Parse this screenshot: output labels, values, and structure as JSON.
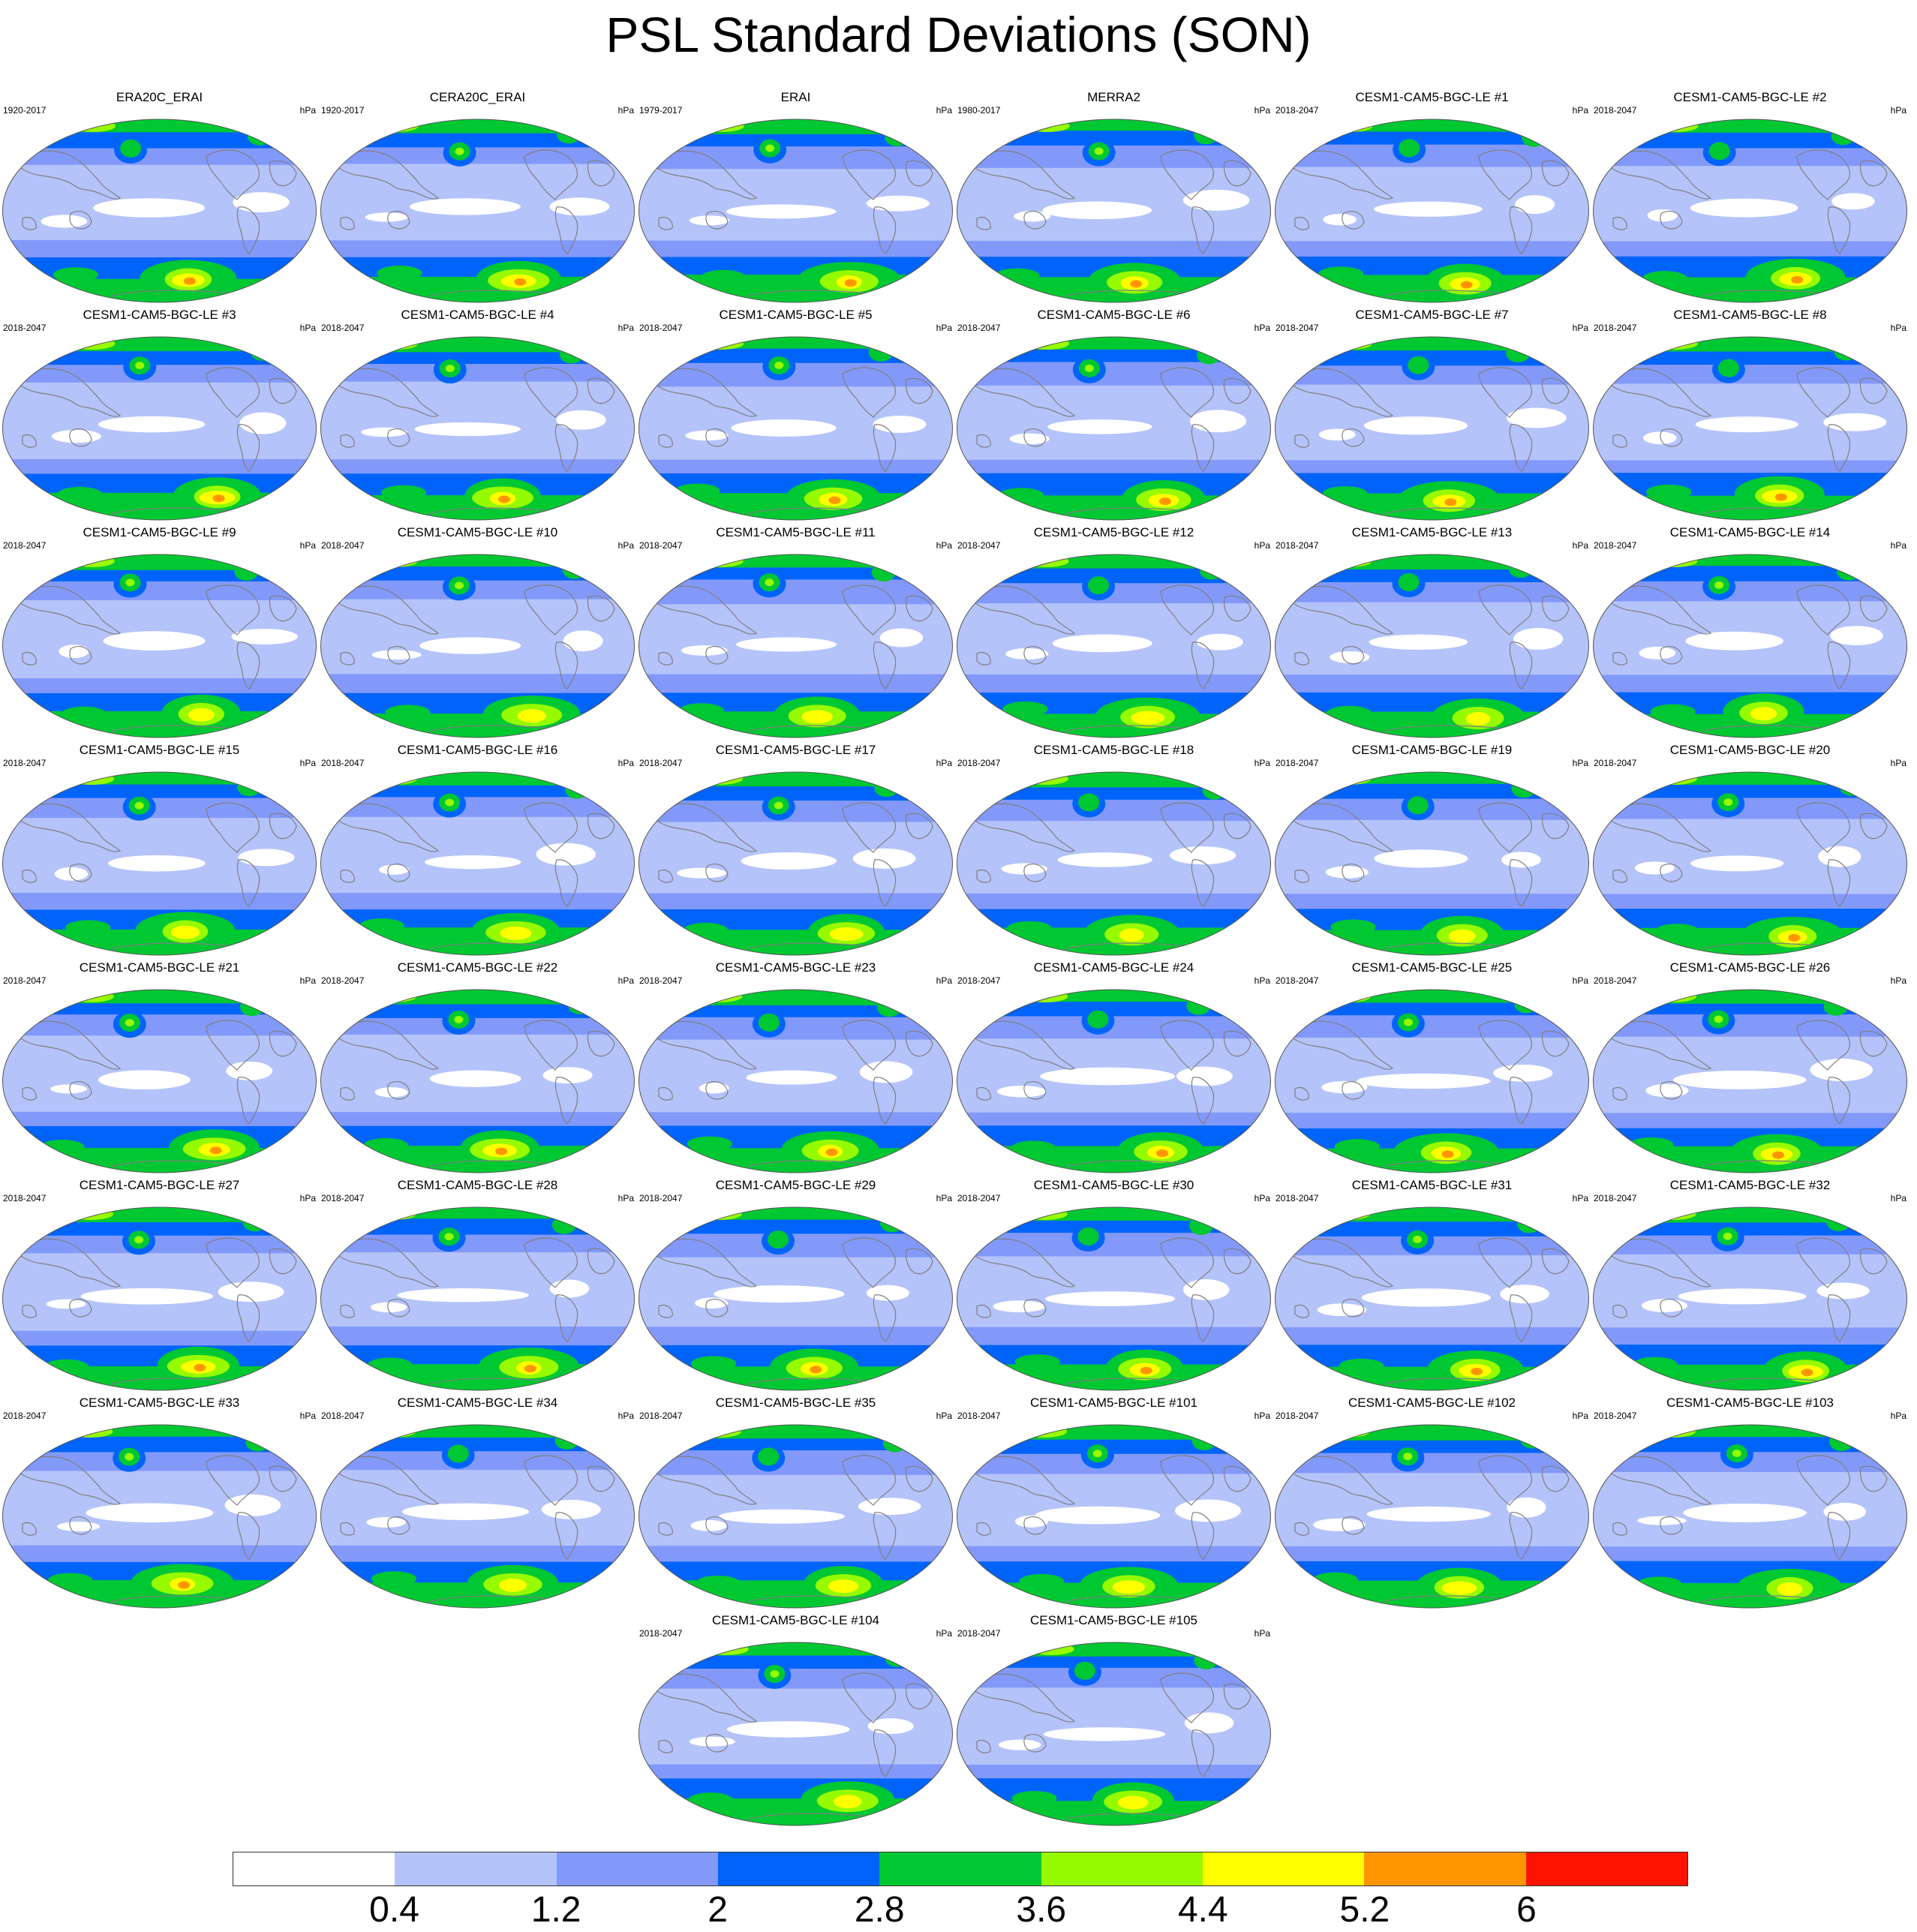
{
  "title": "PSL Standard Deviations (SON)",
  "units": "hPa",
  "colors": {
    "levels": [
      "#ffffff",
      "#b4c3fa",
      "#8299fa",
      "#0064fa",
      "#00c832",
      "#96fa00",
      "#ffff00",
      "#ff9600",
      "#ff1400"
    ],
    "coast": "#7f7f7f"
  },
  "colorbar": {
    "labels": [
      "0.4",
      "1.2",
      "2",
      "2.8",
      "3.6",
      "4.4",
      "5.2",
      "6"
    ]
  },
  "panels": [
    {
      "title": "ERA20C_ERAI",
      "period": "1920-2017"
    },
    {
      "title": "CERA20C_ERAI",
      "period": "1920-2017"
    },
    {
      "title": "ERAI",
      "period": "1979-2017"
    },
    {
      "title": "MERRA2",
      "period": "1980-2017"
    },
    {
      "title": "CESM1-CAM5-BGC-LE #1",
      "period": "2018-2047"
    },
    {
      "title": "CESM1-CAM5-BGC-LE #2",
      "period": "2018-2047"
    },
    {
      "title": "CESM1-CAM5-BGC-LE #3",
      "period": "2018-2047"
    },
    {
      "title": "CESM1-CAM5-BGC-LE #4",
      "period": "2018-2047"
    },
    {
      "title": "CESM1-CAM5-BGC-LE #5",
      "period": "2018-2047"
    },
    {
      "title": "CESM1-CAM5-BGC-LE #6",
      "period": "2018-2047"
    },
    {
      "title": "CESM1-CAM5-BGC-LE #7",
      "period": "2018-2047"
    },
    {
      "title": "CESM1-CAM5-BGC-LE #8",
      "period": "2018-2047"
    },
    {
      "title": "CESM1-CAM5-BGC-LE #9",
      "period": "2018-2047"
    },
    {
      "title": "CESM1-CAM5-BGC-LE #10",
      "period": "2018-2047"
    },
    {
      "title": "CESM1-CAM5-BGC-LE #11",
      "period": "2018-2047"
    },
    {
      "title": "CESM1-CAM5-BGC-LE #12",
      "period": "2018-2047"
    },
    {
      "title": "CESM1-CAM5-BGC-LE #13",
      "period": "2018-2047"
    },
    {
      "title": "CESM1-CAM5-BGC-LE #14",
      "period": "2018-2047"
    },
    {
      "title": "CESM1-CAM5-BGC-LE #15",
      "period": "2018-2047"
    },
    {
      "title": "CESM1-CAM5-BGC-LE #16",
      "period": "2018-2047"
    },
    {
      "title": "CESM1-CAM5-BGC-LE #17",
      "period": "2018-2047"
    },
    {
      "title": "CESM1-CAM5-BGC-LE #18",
      "period": "2018-2047"
    },
    {
      "title": "CESM1-CAM5-BGC-LE #19",
      "period": "2018-2047"
    },
    {
      "title": "CESM1-CAM5-BGC-LE #20",
      "period": "2018-2047"
    },
    {
      "title": "CESM1-CAM5-BGC-LE #21",
      "period": "2018-2047"
    },
    {
      "title": "CESM1-CAM5-BGC-LE #22",
      "period": "2018-2047"
    },
    {
      "title": "CESM1-CAM5-BGC-LE #23",
      "period": "2018-2047"
    },
    {
      "title": "CESM1-CAM5-BGC-LE #24",
      "period": "2018-2047"
    },
    {
      "title": "CESM1-CAM5-BGC-LE #25",
      "period": "2018-2047"
    },
    {
      "title": "CESM1-CAM5-BGC-LE #26",
      "period": "2018-2047"
    },
    {
      "title": "CESM1-CAM5-BGC-LE #27",
      "period": "2018-2047"
    },
    {
      "title": "CESM1-CAM5-BGC-LE #28",
      "period": "2018-2047"
    },
    {
      "title": "CESM1-CAM5-BGC-LE #29",
      "period": "2018-2047"
    },
    {
      "title": "CESM1-CAM5-BGC-LE #30",
      "period": "2018-2047"
    },
    {
      "title": "CESM1-CAM5-BGC-LE #31",
      "period": "2018-2047"
    },
    {
      "title": "CESM1-CAM5-BGC-LE #32",
      "period": "2018-2047"
    },
    {
      "title": "CESM1-CAM5-BGC-LE #33",
      "period": "2018-2047"
    },
    {
      "title": "CESM1-CAM5-BGC-LE #34",
      "period": "2018-2047"
    },
    {
      "title": "CESM1-CAM5-BGC-LE #35",
      "period": "2018-2047"
    },
    {
      "title": "CESM1-CAM5-BGC-LE #101",
      "period": "2018-2047"
    },
    {
      "title": "CESM1-CAM5-BGC-LE #102",
      "period": "2018-2047"
    },
    {
      "title": "CESM1-CAM5-BGC-LE #103",
      "period": "2018-2047"
    },
    {
      "title": "CESM1-CAM5-BGC-LE #104",
      "period": "2018-2047"
    },
    {
      "title": "CESM1-CAM5-BGC-LE #105",
      "period": "2018-2047"
    }
  ]
}
